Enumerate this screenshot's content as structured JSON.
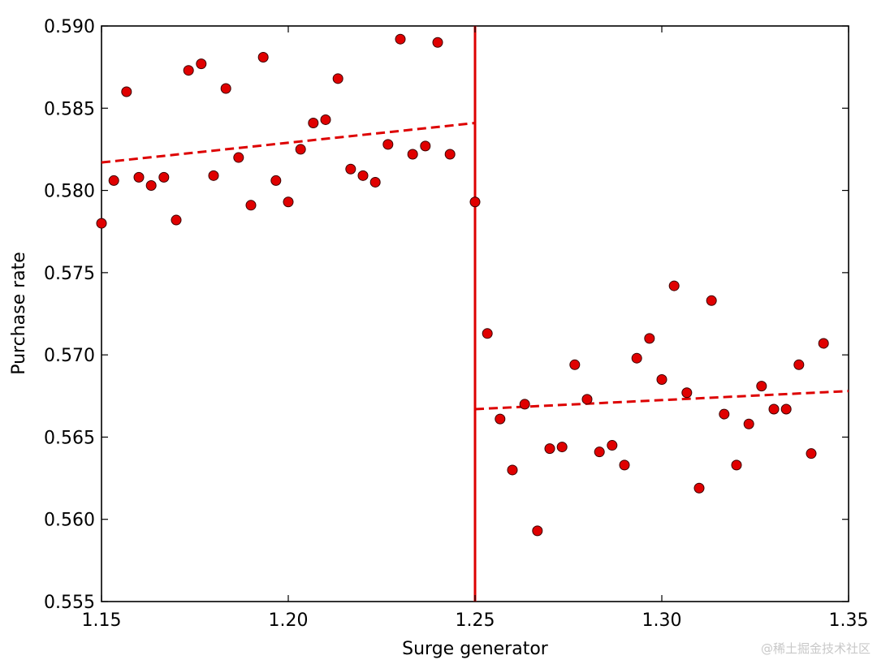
{
  "chart_data": {
    "type": "scatter",
    "title": "",
    "xlabel": "Surge generator",
    "ylabel": "Purchase rate",
    "xlim": [
      1.15,
      1.35
    ],
    "ylim": [
      0.555,
      0.59
    ],
    "x_ticks": [
      "1.15",
      "1.20",
      "1.25",
      "1.30",
      "1.35"
    ],
    "y_ticks": [
      "0.555",
      "0.560",
      "0.565",
      "0.570",
      "0.575",
      "0.580",
      "0.585",
      "0.590"
    ],
    "grid": false,
    "legend": "none",
    "point_color": "#e00000",
    "line_color": "#dd0000",
    "threshold": 1.25,
    "points": [
      [
        1.15,
        0.578
      ],
      [
        1.1533,
        0.5806
      ],
      [
        1.1567,
        0.586
      ],
      [
        1.16,
        0.5808
      ],
      [
        1.1633,
        0.5803
      ],
      [
        1.1667,
        0.5808
      ],
      [
        1.17,
        0.5782
      ],
      [
        1.1733,
        0.5873
      ],
      [
        1.1767,
        0.5877
      ],
      [
        1.18,
        0.5809
      ],
      [
        1.1833,
        0.5862
      ],
      [
        1.1867,
        0.582
      ],
      [
        1.19,
        0.5791
      ],
      [
        1.1933,
        0.5881
      ],
      [
        1.1967,
        0.5806
      ],
      [
        1.2,
        0.5793
      ],
      [
        1.2033,
        0.5825
      ],
      [
        1.2067,
        0.5841
      ],
      [
        1.21,
        0.5843
      ],
      [
        1.2133,
        0.5868
      ],
      [
        1.2167,
        0.5813
      ],
      [
        1.22,
        0.5809
      ],
      [
        1.2233,
        0.5805
      ],
      [
        1.2267,
        0.5828
      ],
      [
        1.23,
        0.5892
      ],
      [
        1.2333,
        0.5822
      ],
      [
        1.2367,
        0.5827
      ],
      [
        1.24,
        0.589
      ],
      [
        1.2433,
        0.5822
      ],
      [
        1.25,
        0.5793
      ],
      [
        1.2533,
        0.5713
      ],
      [
        1.2567,
        0.5661
      ],
      [
        1.26,
        0.563
      ],
      [
        1.2633,
        0.567
      ],
      [
        1.2667,
        0.5593
      ],
      [
        1.27,
        0.5643
      ],
      [
        1.2733,
        0.5644
      ],
      [
        1.2767,
        0.5694
      ],
      [
        1.28,
        0.5673
      ],
      [
        1.2833,
        0.5641
      ],
      [
        1.2867,
        0.5645
      ],
      [
        1.29,
        0.5633
      ],
      [
        1.2933,
        0.5698
      ],
      [
        1.2967,
        0.571
      ],
      [
        1.3,
        0.5685
      ],
      [
        1.3033,
        0.5742
      ],
      [
        1.3067,
        0.5677
      ],
      [
        1.31,
        0.5619
      ],
      [
        1.3133,
        0.5733
      ],
      [
        1.3167,
        0.5664
      ],
      [
        1.32,
        0.5633
      ],
      [
        1.3233,
        0.5658
      ],
      [
        1.3267,
        0.5681
      ],
      [
        1.33,
        0.5667
      ],
      [
        1.3333,
        0.5667
      ],
      [
        1.3367,
        0.5694
      ],
      [
        1.34,
        0.564
      ],
      [
        1.3433,
        0.5707
      ]
    ],
    "fit_lines": [
      {
        "x": [
          1.15,
          1.25
        ],
        "y": [
          0.5817,
          0.5841
        ]
      },
      {
        "x": [
          1.25,
          1.35
        ],
        "y": [
          0.5667,
          0.5678
        ]
      }
    ]
  },
  "watermark": "@稀土掘金技术社区"
}
